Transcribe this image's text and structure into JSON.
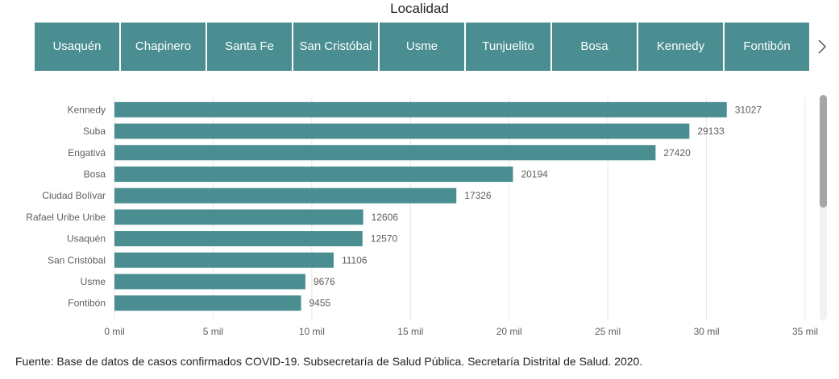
{
  "slicer": {
    "title": "Localidad",
    "items": [
      "Usaquén",
      "Chapinero",
      "Santa Fe",
      "San Cristóbal",
      "Usme",
      "Tunjuelito",
      "Bosa",
      "Kennedy",
      "Fontibón"
    ],
    "next_icon": "chevron-right-icon",
    "tile_color": "#4a8e91"
  },
  "chart_data": {
    "type": "bar",
    "orientation": "horizontal",
    "categories": [
      "Kennedy",
      "Suba",
      "Engativá",
      "Bosa",
      "Ciudad Bolívar",
      "Rafael Uribe Uribe",
      "Usaquén",
      "San Cristóbal",
      "Usme",
      "Fontibón"
    ],
    "values": [
      31027,
      29133,
      27420,
      20194,
      17326,
      12606,
      12570,
      11106,
      9676,
      9455
    ],
    "xlim": [
      0,
      35000
    ],
    "xticks": [
      0,
      5000,
      10000,
      15000,
      20000,
      25000,
      30000,
      35000
    ],
    "xtick_labels": [
      "0 mil",
      "5 mil",
      "10 mil",
      "15 mil",
      "20 mil",
      "25 mil",
      "30 mil",
      "35 mil"
    ],
    "grid": true,
    "bar_color": "#4a8e91",
    "data_labels": true
  },
  "source": "Fuente: Base de datos de casos confirmados COVID-19. Subsecretaría de Salud Pública. Secretaría Distrital de Salud. 2020."
}
